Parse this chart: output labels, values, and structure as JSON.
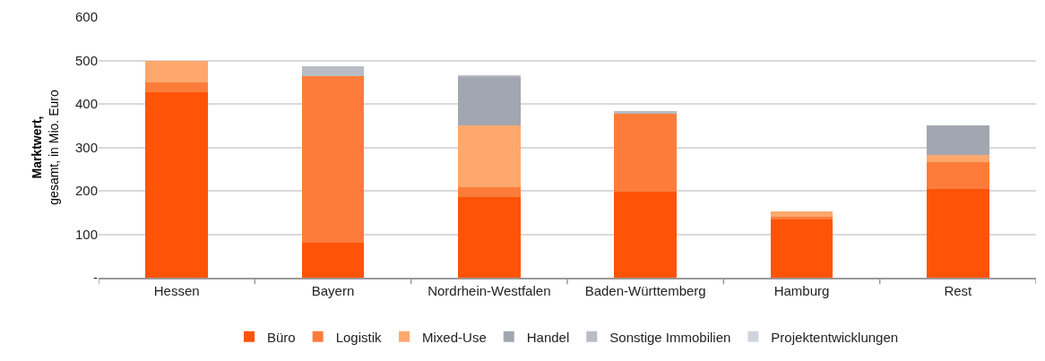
{
  "chart_data": {
    "type": "bar",
    "stacked": true,
    "ylabel": "Marktwert,\ngesamt, in Mio. Euro",
    "categories": [
      "Hessen",
      "Bayern",
      "Nordrhein-Westfalen",
      "Baden-Württemberg",
      "Hamburg",
      "Rest"
    ],
    "series": [
      {
        "name": "Büro",
        "color": "#ff5308",
        "values": [
          426,
          81,
          185,
          197,
          135,
          204
        ]
      },
      {
        "name": "Logistik",
        "color": "#fe7c3a",
        "values": [
          23,
          383,
          23,
          181,
          5,
          61
        ]
      },
      {
        "name": "Mixed-Use",
        "color": "#fea86e",
        "values": [
          50,
          0,
          142,
          0,
          13,
          17
        ]
      },
      {
        "name": "Handel",
        "color": "#a2a6b0",
        "values": [
          0,
          0,
          113,
          0,
          0,
          69
        ]
      },
      {
        "name": "Sonstige Immobilien",
        "color": "#b8bcc4",
        "values": [
          0,
          23,
          2,
          6,
          0,
          0
        ]
      },
      {
        "name": "Projektentwicklungen",
        "color": "#d0d4dc",
        "values": [
          null,
          0,
          0,
          0,
          0,
          0
        ]
      }
    ],
    "ylim": [
      0,
      600
    ],
    "yticks": [
      {
        "value": 0,
        "label": "-"
      },
      100,
      200,
      300,
      400,
      500,
      600
    ],
    "grid": "y",
    "legend": "bottom"
  }
}
